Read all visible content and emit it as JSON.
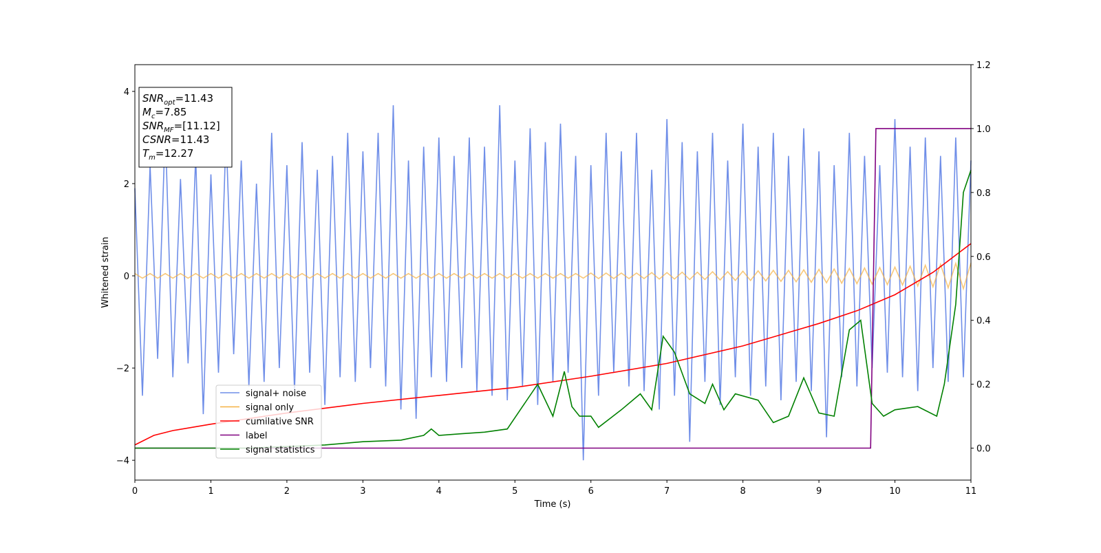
{
  "chart_data": {
    "type": "line",
    "xlabel": "Time (s)",
    "ylabel": "Whitened strain",
    "xlim": [
      0,
      11
    ],
    "xticks": [
      0,
      1,
      2,
      3,
      4,
      5,
      6,
      7,
      8,
      9,
      10,
      11
    ],
    "ylim": [
      -4.43,
      4.58
    ],
    "yticks": [
      {
        "value": -4,
        "label": "−4"
      },
      {
        "value": -2,
        "label": "−2"
      },
      0,
      2,
      4
    ],
    "y2lim": [
      -0.1,
      1.2
    ],
    "y2ticks": [
      {
        "value": 0,
        "label": "0.0"
      },
      {
        "value": 0.2,
        "label": "0.2"
      },
      {
        "value": 0.4,
        "label": "0.4"
      },
      {
        "value": 0.6,
        "label": "0.6"
      },
      {
        "value": 0.8,
        "label": "0.8"
      },
      {
        "value": 1,
        "label": "1.0"
      },
      {
        "value": 1.2,
        "label": "1.2"
      }
    ],
    "legend": "lower left",
    "annotations": [
      {
        "base": "SNR",
        "sub": "opt",
        "text": "=11.43"
      },
      {
        "base": "M",
        "sub": "c",
        "text": "=7.85"
      },
      {
        "base": "SNR",
        "sub": "MF",
        "text": "=[11.12]"
      },
      {
        "base": "CSNR",
        "sub": null,
        "text": "=11.43"
      },
      {
        "base": "T",
        "sub": "m",
        "text": "=12.27"
      }
    ],
    "series": [
      {
        "name": "signal+ noise",
        "color": "#6f8ee8",
        "x": [
          0,
          0.1,
          0.2,
          0.3,
          0.4,
          0.5,
          0.6,
          0.7,
          0.8,
          0.9,
          1,
          1.1,
          1.2,
          1.3,
          1.4,
          1.5,
          1.6,
          1.7,
          1.8,
          1.9,
          2,
          2.1,
          2.2,
          2.3,
          2.4,
          2.5,
          2.6,
          2.7,
          2.8,
          2.9,
          3,
          3.1,
          3.2,
          3.3,
          3.4,
          3.5,
          3.6,
          3.7,
          3.8,
          3.9,
          4,
          4.1,
          4.2,
          4.3,
          4.4,
          4.5,
          4.6,
          4.7,
          4.8,
          4.9,
          5,
          5.1,
          5.2,
          5.3,
          5.4,
          5.5,
          5.6,
          5.7,
          5.8,
          5.9,
          6,
          6.1,
          6.2,
          6.3,
          6.4,
          6.5,
          6.6,
          6.7,
          6.8,
          6.9,
          7,
          7.1,
          7.2,
          7.3,
          7.4,
          7.5,
          7.6,
          7.7,
          7.8,
          7.9,
          8,
          8.1,
          8.2,
          8.3,
          8.4,
          8.5,
          8.6,
          8.7,
          8.8,
          8.9,
          9,
          9.1,
          9.2,
          9.3,
          9.4,
          9.5,
          9.6,
          9.7,
          9.8,
          9.9,
          10,
          10.1,
          10.2,
          10.3,
          10.4,
          10.5,
          10.6,
          10.7,
          10.8,
          10.9,
          11
        ],
        "values": [
          1.9,
          -2.6,
          2.4,
          -1.8,
          3.2,
          -2.2,
          2.1,
          -1.9,
          2.6,
          -3.0,
          2.2,
          -2.1,
          3.1,
          -1.7,
          2.5,
          -2.4,
          2.0,
          -2.3,
          3.1,
          -2.0,
          2.4,
          -2.5,
          2.9,
          -2.1,
          2.3,
          -2.8,
          2.6,
          -2.2,
          3.1,
          -2.3,
          2.7,
          -2.0,
          3.1,
          -2.4,
          3.7,
          -2.9,
          2.5,
          -3.1,
          2.8,
          -2.2,
          3.0,
          -2.3,
          2.6,
          -2.0,
          3.0,
          -2.5,
          2.8,
          -2.6,
          3.7,
          -2.7,
          2.5,
          -2.4,
          3.2,
          -2.8,
          2.9,
          -2.3,
          3.3,
          -2.1,
          2.6,
          -4.0,
          2.4,
          -2.6,
          3.1,
          -2.1,
          2.7,
          -2.4,
          3.1,
          -2.5,
          2.3,
          -2.9,
          3.4,
          -2.6,
          2.9,
          -3.6,
          2.7,
          -2.3,
          3.1,
          -2.8,
          2.5,
          -2.2,
          3.3,
          -2.6,
          2.8,
          -2.4,
          3.1,
          -2.7,
          2.6,
          -2.3,
          3.2,
          -2.5,
          2.7,
          -3.5,
          2.4,
          -2.2,
          3.1,
          -2.4,
          2.6,
          -2.0,
          2.4,
          -2.1,
          3.4,
          -2.2,
          2.8,
          -2.5,
          3.0,
          -2.0,
          2.6,
          -2.3,
          3.0,
          -2.2,
          2.5
        ]
      },
      {
        "name": "signal only",
        "color": "#f5b041",
        "x": [
          0,
          0.1,
          0.2,
          0.3,
          0.4,
          0.5,
          0.6,
          0.7,
          0.8,
          0.9,
          1,
          1.1,
          1.2,
          1.3,
          1.4,
          1.5,
          1.6,
          1.7,
          1.8,
          1.9,
          2,
          2.1,
          2.2,
          2.3,
          2.4,
          2.5,
          2.6,
          2.7,
          2.8,
          2.9,
          3,
          3.1,
          3.2,
          3.3,
          3.4,
          3.5,
          3.6,
          3.7,
          3.8,
          3.9,
          4,
          4.1,
          4.2,
          4.3,
          4.4,
          4.5,
          4.6,
          4.7,
          4.8,
          4.9,
          5,
          5.1,
          5.2,
          5.3,
          5.4,
          5.5,
          5.6,
          5.7,
          5.8,
          5.9,
          6,
          6.1,
          6.2,
          6.3,
          6.4,
          6.5,
          6.6,
          6.7,
          6.8,
          6.9,
          7,
          7.1,
          7.2,
          7.3,
          7.4,
          7.5,
          7.6,
          7.7,
          7.8,
          7.9,
          8,
          8.1,
          8.2,
          8.3,
          8.4,
          8.5,
          8.6,
          8.7,
          8.8,
          8.9,
          9,
          9.1,
          9.2,
          9.3,
          9.4,
          9.5,
          9.6,
          9.7,
          9.8,
          9.9,
          10,
          10.1,
          10.2,
          10.3,
          10.4,
          10.5,
          10.6,
          10.7,
          10.8,
          10.9,
          11
        ],
        "values": [
          0.05,
          -0.05,
          0.05,
          -0.05,
          0.05,
          -0.05,
          0.05,
          -0.05,
          0.05,
          -0.05,
          0.05,
          -0.05,
          0.05,
          -0.05,
          0.05,
          -0.05,
          0.05,
          -0.05,
          0.05,
          -0.05,
          0.05,
          -0.05,
          0.05,
          -0.05,
          0.05,
          -0.05,
          0.05,
          -0.05,
          0.05,
          -0.05,
          0.05,
          -0.05,
          0.05,
          -0.05,
          0.05,
          -0.05,
          0.05,
          -0.05,
          0.05,
          -0.05,
          0.05,
          -0.05,
          0.05,
          -0.05,
          0.05,
          -0.05,
          0.05,
          -0.05,
          0.05,
          -0.05,
          0.05,
          -0.05,
          0.05,
          -0.05,
          0.05,
          -0.05,
          0.05,
          -0.05,
          0.05,
          -0.05,
          0.06,
          -0.06,
          0.06,
          -0.06,
          0.06,
          -0.06,
          0.06,
          -0.06,
          0.07,
          -0.07,
          0.07,
          -0.07,
          0.08,
          -0.08,
          0.08,
          -0.08,
          0.09,
          -0.09,
          0.09,
          -0.1,
          0.1,
          -0.1,
          0.11,
          -0.11,
          0.12,
          -0.12,
          0.12,
          -0.13,
          0.13,
          -0.14,
          0.14,
          -0.15,
          0.15,
          -0.16,
          0.16,
          -0.17,
          0.17,
          -0.18,
          0.18,
          -0.19,
          0.19,
          -0.2,
          0.21,
          -0.22,
          0.23,
          -0.24,
          0.25,
          -0.26,
          0.27,
          -0.28,
          0.28
        ]
      },
      {
        "name": "cumilative SNR",
        "color": "#ff0000",
        "axis": "y2",
        "x": [
          0,
          0.25,
          0.5,
          1,
          2,
          3,
          4,
          5,
          6,
          7,
          8,
          9,
          9.5,
          10,
          10.5,
          11
        ],
        "values": [
          0.01,
          0.04,
          0.055,
          0.075,
          0.11,
          0.14,
          0.165,
          0.19,
          0.225,
          0.265,
          0.32,
          0.39,
          0.43,
          0.48,
          0.55,
          0.64
        ]
      },
      {
        "name": "label",
        "color": "#800080",
        "axis": "y2",
        "x": [
          0,
          9.68,
          9.75,
          11
        ],
        "values": [
          0,
          0,
          1,
          1
        ]
      },
      {
        "name": "signal statistics",
        "color": "#008000",
        "axis": "y2",
        "x": [
          0,
          0.5,
          1,
          1.5,
          2,
          2.5,
          3,
          3.5,
          3.8,
          3.9,
          4,
          4.3,
          4.6,
          4.9,
          5.1,
          5.3,
          5.5,
          5.65,
          5.75,
          5.85,
          6,
          6.1,
          6.4,
          6.65,
          6.8,
          6.95,
          7.1,
          7.3,
          7.5,
          7.6,
          7.75,
          7.9,
          8.2,
          8.4,
          8.6,
          8.8,
          9,
          9.2,
          9.4,
          9.55,
          9.7,
          9.85,
          10,
          10.3,
          10.55,
          10.65,
          10.8,
          10.9,
          11
        ],
        "values": [
          0,
          0,
          0,
          0,
          0.005,
          0.01,
          0.02,
          0.025,
          0.04,
          0.06,
          0.04,
          0.045,
          0.05,
          0.06,
          0.13,
          0.2,
          0.1,
          0.24,
          0.13,
          0.1,
          0.1,
          0.065,
          0.12,
          0.17,
          0.12,
          0.35,
          0.3,
          0.17,
          0.14,
          0.2,
          0.12,
          0.17,
          0.15,
          0.08,
          0.1,
          0.22,
          0.11,
          0.1,
          0.37,
          0.4,
          0.14,
          0.1,
          0.12,
          0.13,
          0.1,
          0.2,
          0.45,
          0.8,
          0.87
        ]
      }
    ]
  }
}
